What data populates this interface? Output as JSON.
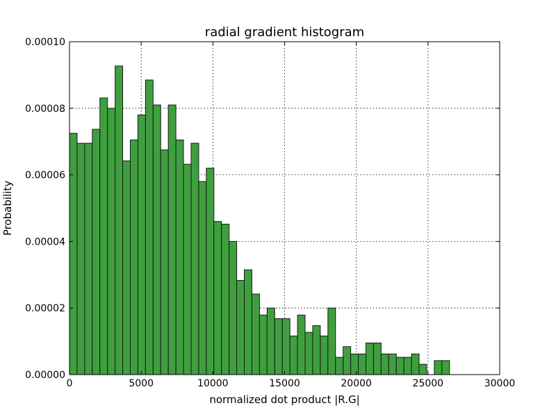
{
  "chart_data": {
    "type": "bar",
    "title": "radial gradient histogram",
    "xlabel": "normalized dot product |R.G|",
    "ylabel": "Probability",
    "xlim": [
      0,
      30000
    ],
    "ylim": [
      0,
      0.0001
    ],
    "x_ticks": [
      0,
      5000,
      10000,
      15000,
      20000,
      25000,
      30000
    ],
    "x_tick_labels": [
      "0",
      "5000",
      "10000",
      "15000",
      "20000",
      "25000",
      "30000"
    ],
    "y_ticks": [
      0,
      2e-05,
      4e-05,
      6e-05,
      8e-05,
      0.0001
    ],
    "y_tick_labels": [
      "0.00000",
      "0.00002",
      "0.00004",
      "0.00006",
      "0.00008",
      "0.00010"
    ],
    "grid": true,
    "bar_color": "#3f9f3f",
    "bin_width": 530,
    "bin_starts": [
      0,
      530,
      1060,
      1590,
      2120,
      2650,
      3180,
      3710,
      4240,
      4770,
      5300,
      5830,
      6360,
      6890,
      7420,
      7950,
      8480,
      9010,
      9540,
      10070,
      10600,
      11130,
      11660,
      12190,
      12720,
      13250,
      13780,
      14310,
      14840,
      15370,
      15900,
      16430,
      16960,
      17490,
      18020,
      18550,
      19080,
      19610,
      20140,
      20670,
      21200,
      21730,
      22260,
      22790,
      23320,
      23850,
      24380,
      24910,
      25440,
      25970,
      26500
    ],
    "values": [
      7.25e-05,
      6.95e-05,
      6.95e-05,
      7.37e-05,
      8.31e-05,
      8e-05,
      9.27e-05,
      6.42e-05,
      7.05e-05,
      7.8e-05,
      8.85e-05,
      8.1e-05,
      6.75e-05,
      8.1e-05,
      7.05e-05,
      6.32e-05,
      6.95e-05,
      5.8e-05,
      6.2e-05,
      4.6e-05,
      4.52e-05,
      4e-05,
      2.83e-05,
      3.15e-05,
      2.42e-05,
      1.79e-05,
      2e-05,
      1.68e-05,
      1.68e-05,
      1.16e-05,
      1.79e-05,
      1.27e-05,
      1.47e-05,
      1.16e-05,
      2e-05,
      5.2e-06,
      8.4e-06,
      6.2e-06,
      6.2e-06,
      9.5e-06,
      9.5e-06,
      6.2e-06,
      6.2e-06,
      5.2e-06,
      5.2e-06,
      6.2e-06,
      3.1e-06,
      0,
      4.2e-06,
      4.2e-06,
      0
    ]
  }
}
